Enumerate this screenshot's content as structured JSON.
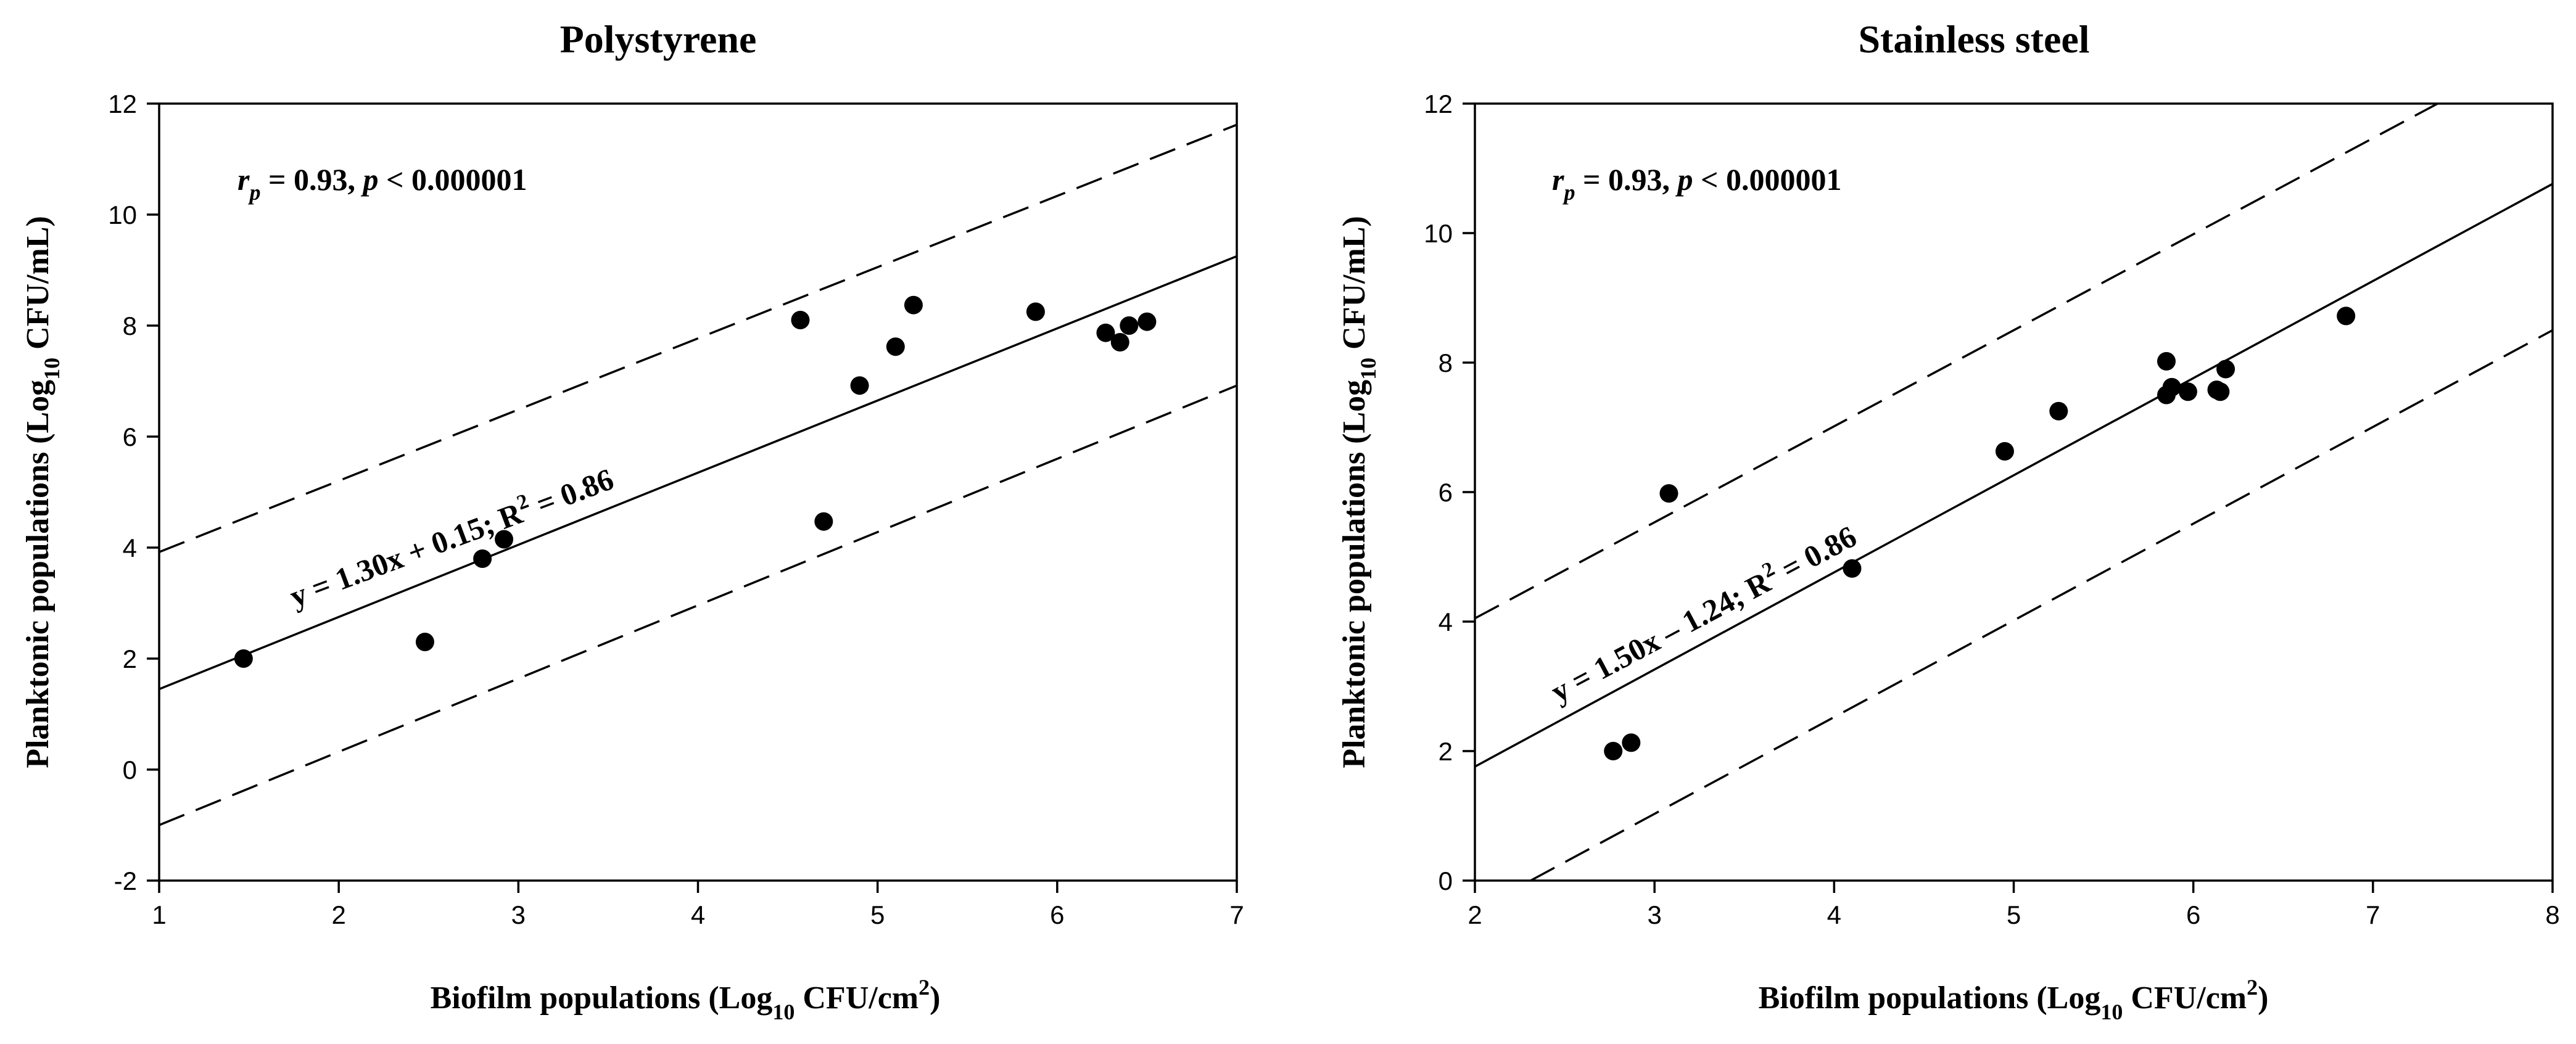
{
  "chart_data": [
    {
      "type": "scatter",
      "title": "Polystyrene",
      "xlabel": {
        "main": "Biofilm populations (Log",
        "sub": "10",
        "mid": " CFU/cm",
        "sup": "2",
        "end": ")"
      },
      "ylabel": {
        "main": "Planktonic populations (Log",
        "sub": "10",
        "end": " CFU/mL)"
      },
      "xlim": [
        1,
        7
      ],
      "ylim": [
        -2,
        12
      ],
      "xticks": [
        1,
        2,
        3,
        4,
        5,
        6,
        7
      ],
      "yticks": [
        -2,
        0,
        2,
        4,
        6,
        8,
        10,
        12
      ],
      "correlation": {
        "r_symbol": "r",
        "r_sub": "p",
        "r_value": " = 0.93, ",
        "p_symbol": "p",
        "p_text": " < 0.000001"
      },
      "equation": {
        "text": "y = 1.30x + 0.15; R",
        "sup": "2",
        "tail": " = 0.86"
      },
      "fit": {
        "slope": 1.3,
        "intercept": 0.15
      },
      "prediction_band": {
        "upper": [
          [
            1,
            3.92
          ],
          [
            7,
            11.62
          ]
        ],
        "lower": [
          [
            1,
            -1.0
          ],
          [
            7,
            6.92
          ]
        ]
      },
      "points": [
        {
          "x": 1.47,
          "y": 2.0
        },
        {
          "x": 2.48,
          "y": 2.3
        },
        {
          "x": 2.8,
          "y": 3.8
        },
        {
          "x": 2.92,
          "y": 4.15
        },
        {
          "x": 4.57,
          "y": 8.1
        },
        {
          "x": 4.7,
          "y": 4.47
        },
        {
          "x": 4.9,
          "y": 6.92
        },
        {
          "x": 5.1,
          "y": 7.62
        },
        {
          "x": 5.2,
          "y": 8.37
        },
        {
          "x": 5.88,
          "y": 8.25
        },
        {
          "x": 6.27,
          "y": 7.87
        },
        {
          "x": 6.35,
          "y": 7.7
        },
        {
          "x": 6.4,
          "y": 8.0
        },
        {
          "x": 6.5,
          "y": 8.07
        }
      ]
    },
    {
      "type": "scatter",
      "title": "Stainless steel",
      "xlabel": {
        "main": "Biofilm populations (Log",
        "sub": "10",
        "mid": " CFU/cm",
        "sup": "2",
        "end": ")"
      },
      "ylabel": {
        "main": "Planktonic populations (Log",
        "sub": "10",
        "end": " CFU/mL)"
      },
      "xlim": [
        2,
        8
      ],
      "ylim": [
        0,
        12
      ],
      "xticks": [
        2,
        3,
        4,
        5,
        6,
        7,
        8
      ],
      "yticks": [
        0,
        2,
        4,
        6,
        8,
        10,
        12
      ],
      "correlation": {
        "r_symbol": "r",
        "r_sub": "p",
        "r_value": " = 0.93, ",
        "p_symbol": "p",
        "p_text": " < 0.000001"
      },
      "equation": {
        "text": "y = 1.50x – 1.24; R",
        "sup": "2",
        "tail": " = 0.86"
      },
      "fit": {
        "slope": 1.5,
        "intercept": -1.24
      },
      "prediction_band": {
        "upper": [
          [
            2,
            4.05
          ],
          [
            7.36,
            12
          ]
        ],
        "lower": [
          [
            2.31,
            0
          ],
          [
            8,
            8.5
          ]
        ]
      },
      "points": [
        {
          "x": 2.77,
          "y": 2.0
        },
        {
          "x": 2.87,
          "y": 2.13
        },
        {
          "x": 3.08,
          "y": 5.98
        },
        {
          "x": 4.1,
          "y": 4.82
        },
        {
          "x": 4.95,
          "y": 6.63
        },
        {
          "x": 5.25,
          "y": 7.25
        },
        {
          "x": 5.85,
          "y": 8.02
        },
        {
          "x": 5.85,
          "y": 7.5
        },
        {
          "x": 5.88,
          "y": 7.62
        },
        {
          "x": 5.97,
          "y": 7.55
        },
        {
          "x": 6.13,
          "y": 7.58
        },
        {
          "x": 6.15,
          "y": 7.55
        },
        {
          "x": 6.18,
          "y": 7.9
        },
        {
          "x": 6.85,
          "y": 8.72
        }
      ]
    }
  ]
}
